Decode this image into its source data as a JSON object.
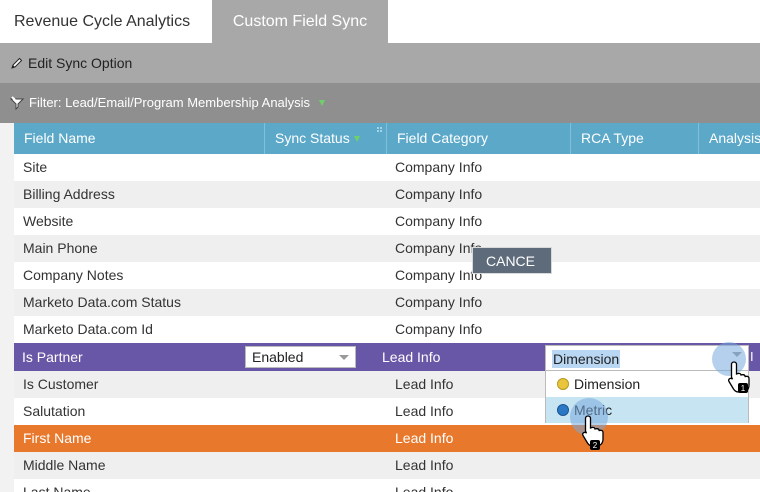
{
  "tabs": [
    {
      "label": "Revenue Cycle Analytics",
      "active": false
    },
    {
      "label": "Custom Field Sync",
      "active": true
    }
  ],
  "toolbar": {
    "edit_label": "Edit Sync Option",
    "icon": "pencil-icon"
  },
  "filter": {
    "label": "Filter: Lead/Email/Program Membership Analysis",
    "icon": "funnel-icon"
  },
  "grid": {
    "columns": [
      "Field Name",
      "Sync Status",
      "Field Category",
      "RCA Type",
      "Analysis"
    ],
    "rows": [
      {
        "field": "Site",
        "status": "",
        "category": "Company Info"
      },
      {
        "field": "Billing Address",
        "status": "",
        "category": "Company Info"
      },
      {
        "field": "Website",
        "status": "",
        "category": "Company Info"
      },
      {
        "field": "Main Phone",
        "status": "",
        "category": "Company Info"
      },
      {
        "field": "Company Notes",
        "status": "",
        "category": "Company Info"
      },
      {
        "field": "Marketo Data.com Status",
        "status": "",
        "category": "Company Info"
      },
      {
        "field": "Marketo Data.com Id",
        "status": "",
        "category": "Company Info"
      },
      {
        "field": "Is Partner",
        "status": "Enabled",
        "category": "Lead Info"
      },
      {
        "field": "Is Customer",
        "status": "",
        "category": "Lead Info"
      },
      {
        "field": "Salutation",
        "status": "",
        "category": "Lead Info"
      },
      {
        "field": "First Name",
        "status": "",
        "category": "Lead Info"
      },
      {
        "field": "Middle Name",
        "status": "",
        "category": "Lead Info"
      },
      {
        "field": "Last Name",
        "status": "",
        "category": "Lead Info"
      }
    ]
  },
  "editor": {
    "cancel_label": "CANCE",
    "rca_value": "Dimension",
    "options": [
      {
        "label": "Dimension",
        "color": "#e8c53a"
      },
      {
        "label": "Metric",
        "color": "#2a78c5"
      }
    ]
  },
  "callouts": [
    "1",
    "2"
  ],
  "colors": {
    "header": "#5ba8c9",
    "selected_row": "#6856a6",
    "highlight_row": "#e8782c"
  }
}
